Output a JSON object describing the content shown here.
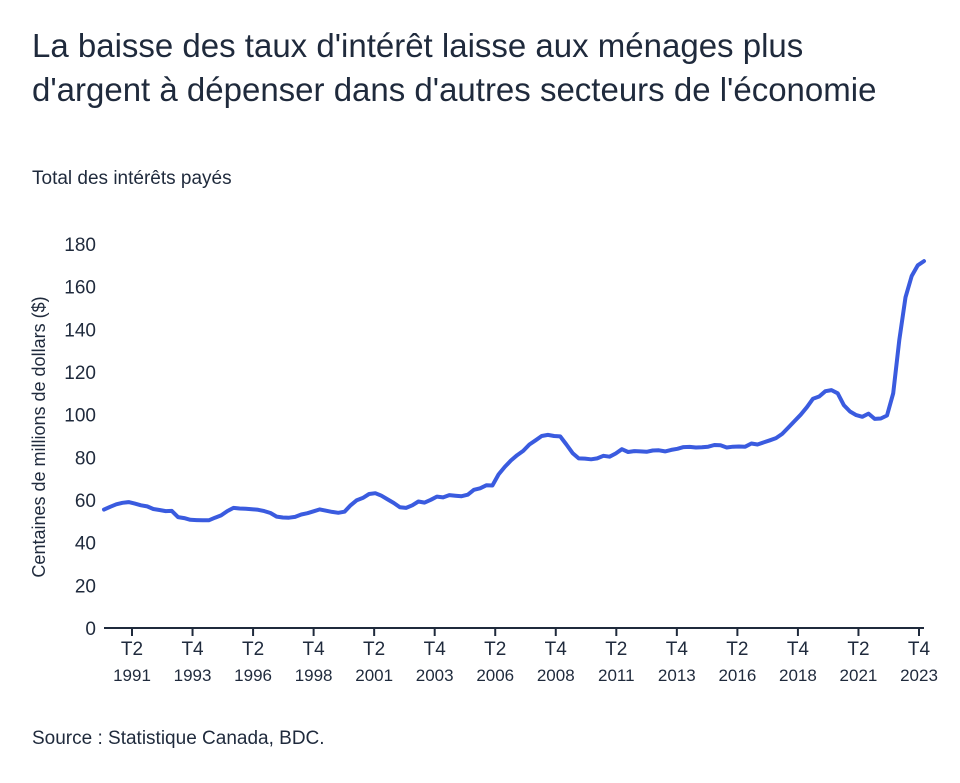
{
  "title": "La baisse des taux d'intérêt laisse aux ménages plus d'argent à dépenser dans d'autres secteurs de l'économie",
  "subtitle": "Total des intérêts payés",
  "source": "Source : Statistique Canada, BDC.",
  "colors": {
    "line": "#3a5bdf",
    "axis": "#1f2a3c"
  },
  "chart_data": {
    "type": "line",
    "title": "La baisse des taux d'intérêt laisse aux ménages plus d'argent à dépenser dans d'autres secteurs de l'économie",
    "subtitle": "Total des intérêts payés",
    "ylabel": "Centaines de millions de dollars ($)",
    "xlabel": "",
    "ylim": [
      0,
      180
    ],
    "yticks": [
      0,
      20,
      40,
      60,
      80,
      100,
      120,
      140,
      160,
      180
    ],
    "x_start": "1990 T4",
    "x_end": "2023 T4",
    "x_tick_labels": [
      {
        "quarter": "T2",
        "year": "1991"
      },
      {
        "quarter": "T4",
        "year": "1993"
      },
      {
        "quarter": "T2",
        "year": "1996"
      },
      {
        "quarter": "T4",
        "year": "1998"
      },
      {
        "quarter": "T2",
        "year": "2001"
      },
      {
        "quarter": "T4",
        "year": "2003"
      },
      {
        "quarter": "T2",
        "year": "2006"
      },
      {
        "quarter": "T4",
        "year": "2008"
      },
      {
        "quarter": "T2",
        "year": "2011"
      },
      {
        "quarter": "T4",
        "year": "2013"
      },
      {
        "quarter": "T2",
        "year": "2016"
      },
      {
        "quarter": "T4",
        "year": "2018"
      },
      {
        "quarter": "T2",
        "year": "2021"
      },
      {
        "quarter": "T4",
        "year": "2023"
      }
    ],
    "grid": false,
    "legend": "none",
    "series": [
      {
        "values": [
          55.5,
          56.8,
          58.0,
          58.7,
          59.0,
          58.3,
          57.5,
          57.0,
          55.8,
          55.3,
          54.8,
          54.9,
          52.0,
          51.5,
          50.7,
          50.6,
          50.5,
          50.5,
          51.7,
          52.8,
          54.8,
          56.3,
          56.0,
          55.9,
          55.7,
          55.4,
          54.8,
          53.9,
          52.2,
          51.8,
          51.7,
          52.1,
          53.2,
          53.8,
          54.7,
          55.6,
          55.0,
          54.4,
          54.0,
          54.5,
          57.5,
          59.9,
          61.0,
          62.8,
          63.2,
          62.0,
          60.3,
          58.6,
          56.6,
          56.3,
          57.5,
          59.3,
          58.8,
          60.1,
          61.6,
          61.2,
          62.3,
          62.0,
          61.8,
          62.5,
          64.8,
          65.5,
          66.9,
          66.8,
          72.0,
          75.5,
          78.5,
          81.0,
          83.0,
          86.0,
          88.0,
          90.0,
          90.5,
          90.0,
          89.8,
          86.0,
          82.0,
          79.5,
          79.4,
          79.1,
          79.5,
          80.7,
          80.3,
          81.8,
          83.8,
          82.5,
          82.9,
          82.8,
          82.6,
          83.2,
          83.3,
          82.8,
          83.5,
          84.0,
          84.8,
          84.9,
          84.6,
          84.7,
          85.0,
          85.8,
          85.7,
          84.6,
          85.0,
          85.1,
          85.0,
          86.5,
          86.0,
          87.0,
          88.0,
          89.0,
          91.0,
          94.0,
          97.0,
          100.0,
          103.5,
          107.5,
          108.5,
          111.0,
          111.5,
          110.0,
          104.5,
          101.5,
          99.8,
          99.0,
          100.5,
          98.0,
          98.2,
          99.6,
          110.0,
          135.0,
          155.0,
          165.0,
          170.0,
          172.0
        ]
      }
    ]
  }
}
